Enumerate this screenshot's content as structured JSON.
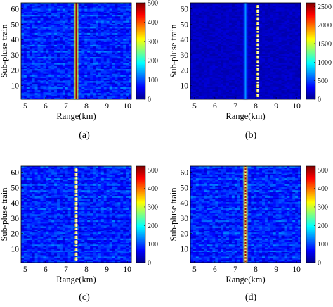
{
  "figure": {
    "panels": [
      {
        "id": "a",
        "caption": "(a)",
        "chart_data": {
          "type": "heatmap",
          "xlabel": "Range(km)",
          "ylabel": "Sub-pluse train",
          "xticks": [
            5,
            6,
            7,
            8,
            9,
            10
          ],
          "yticks": [
            10,
            20,
            30,
            40,
            50,
            60
          ],
          "xlim": [
            4.8,
            10.2
          ],
          "ylim": [
            1,
            64
          ],
          "colorbar": {
            "min": 0,
            "max": 500,
            "ticks": [
              0,
              100,
              200,
              300,
              400,
              500
            ]
          },
          "features": [
            {
              "kind": "line",
              "range_km": 7.5,
              "level": 480,
              "pattern": "continuous"
            }
          ]
        }
      },
      {
        "id": "b",
        "caption": "(b)",
        "chart_data": {
          "type": "heatmap",
          "xlabel": "Range(km)",
          "ylabel": "Sub-pluse train",
          "xticks": [
            5,
            6,
            7,
            8,
            9,
            10
          ],
          "yticks": [
            10,
            20,
            30,
            40,
            50,
            60
          ],
          "xlim": [
            4.8,
            10.2
          ],
          "ylim": [
            1,
            64
          ],
          "colorbar": {
            "min": 0,
            "max": 2600,
            "ticks": [
              0,
              500,
              1000,
              1500,
              2000,
              2500
            ]
          },
          "features": [
            {
              "kind": "line",
              "range_km": 7.5,
              "level": 700,
              "pattern": "continuous"
            },
            {
              "kind": "dots",
              "range_km": 8.1,
              "level": 2400,
              "pattern": "clustered"
            }
          ]
        }
      },
      {
        "id": "c",
        "caption": "(c)",
        "chart_data": {
          "type": "heatmap",
          "xlabel": "Range(km)",
          "ylabel": "Sub-pluse train",
          "xticks": [
            5,
            6,
            7,
            8,
            9,
            10
          ],
          "yticks": [
            10,
            20,
            30,
            40,
            50,
            60
          ],
          "xlim": [
            4.8,
            10.2
          ],
          "ylim": [
            1,
            64
          ],
          "colorbar": {
            "min": 0,
            "max": 520,
            "ticks": [
              0,
              100,
              200,
              300,
              400,
              500
            ]
          },
          "features": [
            {
              "kind": "dots",
              "range_km": 7.5,
              "level": 480,
              "pattern": "clustered"
            }
          ]
        }
      },
      {
        "id": "d",
        "caption": "(d)",
        "chart_data": {
          "type": "heatmap",
          "xlabel": "Range(km)",
          "ylabel": "Sub-pluse train",
          "xticks": [
            5,
            6,
            7,
            8,
            9,
            10
          ],
          "yticks": [
            10,
            20,
            30,
            40,
            50,
            60
          ],
          "xlim": [
            4.8,
            10.2
          ],
          "ylim": [
            1,
            64
          ],
          "colorbar": {
            "min": 0,
            "max": 520,
            "ticks": [
              0,
              100,
              200,
              300,
              400,
              500
            ]
          },
          "features": [
            {
              "kind": "line",
              "range_km": 7.5,
              "level": 500,
              "pattern": "continuous-red"
            }
          ]
        }
      }
    ]
  }
}
